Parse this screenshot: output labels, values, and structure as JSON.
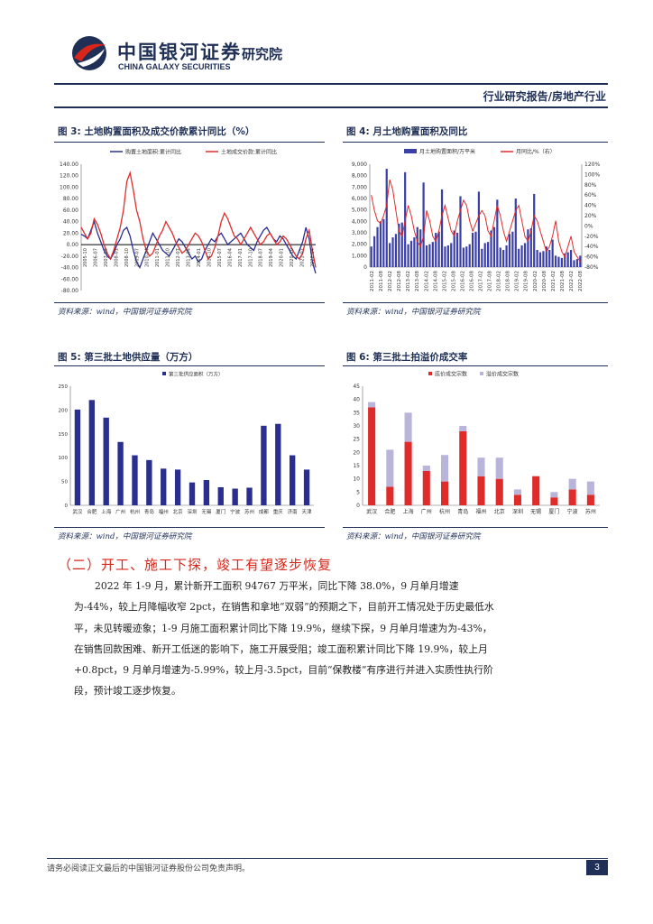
{
  "header": {
    "logo_cn": "中国银河证券",
    "logo_en": "CHINA GALAXY SECURITIES",
    "institute": "研究院",
    "report_type": "行业研究报告/房地产行业"
  },
  "fig3": {
    "title": "图 3: 土地购置面积及成交价款累计同比（%）",
    "source": "资料来源：wind，中国银河证券研究院"
  },
  "fig4": {
    "title": "图 4: 月土地购置面积及同比",
    "source": "资料来源：wind，中国银河证券研究院"
  },
  "fig5": {
    "title": "图 5: 第三批土地供应量（万方）",
    "source": "资料来源：wind，中国银河证券研究院"
  },
  "fig6": {
    "title": "图 6: 第三批土拍溢价成交率",
    "source": "资料来源：wind，中国银河证券研究院"
  },
  "section_title": "（二）开工、施工下探，竣工有望逐步恢复",
  "paragraph": "2022 年 1-9 月，累计新开工面积 94767 万平米，同比下降 38.0%，9 月单月增速为-44%，较上月降幅收窄 2pct，在销售和拿地“双弱”的预期之下，目前开工情况处于历史最低水平，未见转暖迹象；1-9 月施工面积累计同比下降 19.9%，继续下探，9 月单月增速为为-43%，在销售回款困难、新开工低迷的影响下，施工开展受阻；竣工面积累计同比下降 19.9%，较上月+0.8pct，9 月单月增速为-5.99%，较上月-3.5pct，目前“保教楼”有序进行并进入实质性执行阶段，预计竣工逐步恢复。",
  "footer": {
    "disclaimer": "请务必阅读正文最后的中国银河证券股份公司免责声明。",
    "page": "3"
  },
  "colors": {
    "navy": "#1f2f56",
    "red": "#d8261a",
    "series_navy": "#3b3fa8",
    "series_red": "#e02b2b",
    "light_purple": "#b9b4d9"
  },
  "chart_data": [
    {
      "type": "line",
      "id": "fig3",
      "series": [
        {
          "name": "购置土地面积:累计同比",
          "color": "#2a2f8f",
          "values": [
            18,
            15,
            10,
            25,
            40,
            20,
            5,
            -10,
            -20,
            -25,
            -15,
            0,
            10,
            25,
            30,
            15,
            -10,
            -30,
            -40,
            -25,
            -10,
            5,
            20,
            10,
            0,
            -10,
            -15,
            -20,
            -10,
            0,
            10,
            5,
            -5,
            -15,
            -25,
            -20,
            -30,
            -25,
            -10,
            0,
            10,
            5,
            15,
            20,
            10,
            0,
            5,
            10,
            15,
            20,
            10,
            0,
            -5,
            -10,
            5,
            15,
            25,
            30,
            20,
            10,
            5,
            15,
            10,
            0,
            -10,
            -20,
            -25,
            -10,
            5,
            30,
            10,
            -30,
            -50
          ]
        },
        {
          "name": "土地成交价款:累计同比",
          "color": "#e02b2b",
          "values": [
            30,
            20,
            10,
            20,
            45,
            35,
            20,
            0,
            -15,
            -25,
            -10,
            10,
            30,
            60,
            110,
            125,
            95,
            60,
            40,
            10,
            -10,
            -20,
            -15,
            0,
            15,
            25,
            40,
            30,
            20,
            5,
            -5,
            -15,
            -10,
            0,
            10,
            20,
            15,
            5,
            -10,
            -25,
            -20,
            -5,
            15,
            40,
            55,
            45,
            30,
            15,
            10,
            0,
            10,
            20,
            30,
            20,
            10,
            0,
            5,
            15,
            20,
            10,
            0,
            5,
            15,
            10,
            0,
            -10,
            -20,
            -25,
            -15,
            10,
            25,
            -10,
            -40
          ]
        }
      ],
      "x_labels": [
        "2005-10",
        "2006-07",
        "2007-04",
        "2008-01",
        "2008-10",
        "2009-07",
        "2010-04",
        "2011-01",
        "2011-10",
        "2012-07",
        "2013-04",
        "2014-01",
        "2014-10",
        "2015-07",
        "2016-04",
        "2017-01",
        "2017-10",
        "2018-07",
        "2019-04",
        "2020-01",
        "2020-10",
        "2021-07",
        "2022-04"
      ],
      "y_ticks": [
        "140.00",
        "120.00",
        "100.00",
        "80.00",
        "60.00",
        "40.00",
        "20.00",
        "0.00",
        "-20.00",
        "-40.00",
        "-60.00",
        "-80.00"
      ],
      "ylim": [
        -80,
        140
      ]
    },
    {
      "type": "bar",
      "id": "fig4",
      "series": [
        {
          "name": "月土地购置面积/万平米",
          "color": "#3b3fa8",
          "axis": "left",
          "values": [
            1800,
            2700,
            3500,
            4000,
            4200,
            8600,
            2100,
            2600,
            2900,
            3800,
            3900,
            8300,
            2000,
            2300,
            2600,
            3500,
            3300,
            7400,
            1900,
            2000,
            2200,
            3000,
            3100,
            6800,
            1800,
            1900,
            2100,
            3200,
            3000,
            6200,
            1700,
            1800,
            2000,
            3000,
            3100,
            6600,
            1600,
            2100,
            2200,
            3200,
            3500,
            5900,
            1700,
            1500,
            1900,
            2900,
            3100,
            6000,
            1600,
            1900,
            2100,
            3300,
            3400,
            6400,
            1500,
            1300,
            1400,
            1800,
            1500,
            2400,
            1000,
            900,
            800,
            1200,
            1300,
            1500,
            600,
            700,
            1000
          ]
        },
        {
          "name": "月同比/%（右）",
          "color": "#e02b2b",
          "axis": "right",
          "values": [
            60,
            30,
            10,
            5,
            20,
            40,
            90,
            70,
            30,
            -10,
            -20,
            10,
            40,
            20,
            -10,
            -30,
            -40,
            -20,
            30,
            10,
            -20,
            -30,
            -10,
            20,
            40,
            15,
            -10,
            -20,
            10,
            30,
            50,
            40,
            10,
            -10,
            5,
            20,
            30,
            20,
            -10,
            -20,
            10,
            40,
            20,
            -10,
            -30,
            -10,
            10,
            30,
            40,
            10,
            -20,
            -30,
            -10,
            20,
            10,
            -10,
            -30,
            -50,
            -40,
            -20,
            10,
            -30,
            -50,
            -60,
            -40,
            -20,
            -50,
            -60,
            -70
          ]
        }
      ],
      "x_labels": [
        "2011-02",
        "2011-08",
        "2012-02",
        "2012-08",
        "2013-02",
        "2013-08",
        "2014-02",
        "2014-08",
        "2015-02",
        "2015-08",
        "2016-02",
        "2016-08",
        "2017-02",
        "2017-08",
        "2018-02",
        "2018-08",
        "2019-02",
        "2019-08",
        "2020-02",
        "2020-08",
        "2021-02",
        "2021-08",
        "2022-02",
        "2022-08"
      ],
      "y_ticks_left": [
        "9,000",
        "8,000",
        "7,000",
        "6,000",
        "5,000",
        "4,000",
        "3,000",
        "2,000",
        "1,000",
        "0"
      ],
      "y_ticks_right": [
        "120%",
        "100%",
        "80%",
        "60%",
        "40%",
        "20%",
        "0%",
        "-20%",
        "-40%",
        "-60%",
        "-80%"
      ],
      "ylim_left": [
        0,
        9000
      ],
      "ylim_right": [
        -80,
        120
      ]
    },
    {
      "type": "bar",
      "id": "fig5",
      "series": [
        {
          "name": "第三批供应面积（万方）",
          "color": "#2a2f8f",
          "values": [
            201,
            221,
            184,
            133,
            105,
            95,
            77,
            75,
            48,
            53,
            38,
            35,
            37,
            167,
            171,
            105,
            75
          ]
        }
      ],
      "categories": [
        "武汉",
        "合肥",
        "上海",
        "广州",
        "杭州",
        "青岛",
        "福州",
        "北京",
        "深圳",
        "无锡",
        "厦门",
        "宁波",
        "苏州",
        "成都",
        "重庆",
        "济南",
        "天津"
      ],
      "y_ticks": [
        "250",
        "200",
        "150",
        "100",
        "50",
        "0"
      ],
      "ylim": [
        0,
        250
      ]
    },
    {
      "type": "bar",
      "id": "fig6",
      "stacked": true,
      "series": [
        {
          "name": "底价成交宗数",
          "color": "#e02b2b",
          "values": [
            37,
            7,
            24,
            13,
            9,
            28,
            11,
            10,
            4,
            11,
            3,
            6,
            4
          ]
        },
        {
          "name": "溢价成交宗数",
          "color": "#b9b4d9",
          "values": [
            2,
            14,
            11,
            2,
            10,
            2,
            7,
            8,
            2,
            0,
            2,
            4,
            5
          ]
        }
      ],
      "categories": [
        "武汉",
        "合肥",
        "上海",
        "广州",
        "杭州",
        "青岛",
        "福州",
        "北京",
        "深圳",
        "无锡",
        "厦门",
        "宁波",
        "苏州"
      ],
      "y_ticks": [
        "45",
        "40",
        "35",
        "30",
        "25",
        "20",
        "15",
        "10",
        "5",
        "0"
      ],
      "ylim": [
        0,
        45
      ]
    }
  ]
}
